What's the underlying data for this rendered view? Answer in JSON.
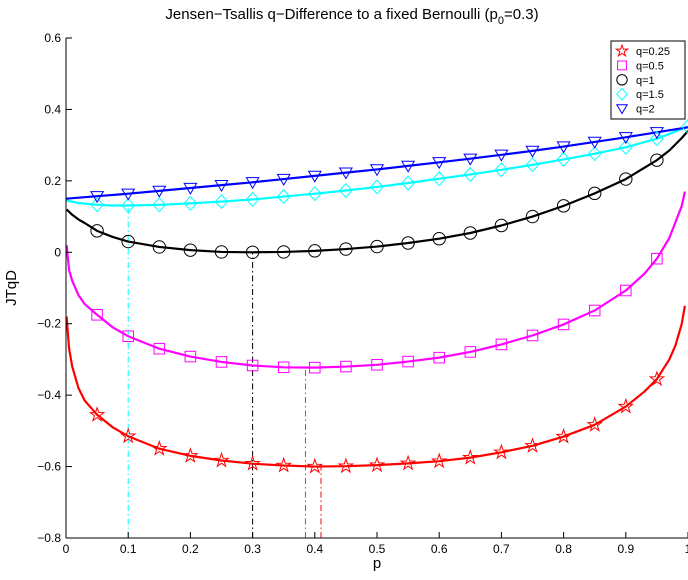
{
  "chart_data": {
    "type": "line",
    "title_main": "Jensen−Tsallis q−Difference to a fixed Bernoulli (p",
    "title_sub": "0",
    "title_end": "=0.3)",
    "xlabel": "p",
    "ylabel": "JTqD",
    "xlim": [
      0,
      1
    ],
    "ylim": [
      -0.8,
      0.6
    ],
    "grid": false,
    "legend_position": "top-right",
    "x_ticks": [
      {
        "value": 0,
        "label": "0"
      },
      {
        "value": 0.1,
        "label": "0.1"
      },
      {
        "value": 0.2,
        "label": "0.2"
      },
      {
        "value": 0.3,
        "label": "0.3"
      },
      {
        "value": 0.4,
        "label": "0.4"
      },
      {
        "value": 0.5,
        "label": "0.5"
      },
      {
        "value": 0.6,
        "label": "0.6"
      },
      {
        "value": 0.7,
        "label": "0.7"
      },
      {
        "value": 0.8,
        "label": "0.8"
      },
      {
        "value": 0.9,
        "label": "0.9"
      },
      {
        "value": 1,
        "label": "1"
      }
    ],
    "y_ticks": [
      {
        "value": -0.8,
        "label": "−0.8"
      },
      {
        "value": -0.6,
        "label": "−0.6"
      },
      {
        "value": -0.4,
        "label": "−0.4"
      },
      {
        "value": -0.2,
        "label": "−0.2"
      },
      {
        "value": 0,
        "label": "0"
      },
      {
        "value": 0.2,
        "label": "0.2"
      },
      {
        "value": 0.4,
        "label": "0.4"
      },
      {
        "value": 0.6,
        "label": "0.6"
      }
    ],
    "series": [
      {
        "name": "q=0.25",
        "color": "#ff0000",
        "marker": "star",
        "min_p": 0.41,
        "curve": [
          [
            0.001,
            -0.18
          ],
          [
            0.005,
            -0.27
          ],
          [
            0.01,
            -0.32
          ],
          [
            0.02,
            -0.38
          ],
          [
            0.03,
            -0.415
          ],
          [
            0.05,
            -0.455
          ],
          [
            0.075,
            -0.49
          ],
          [
            0.1,
            -0.515
          ],
          [
            0.15,
            -0.55
          ],
          [
            0.2,
            -0.57
          ],
          [
            0.25,
            -0.583
          ],
          [
            0.3,
            -0.592
          ],
          [
            0.35,
            -0.597
          ],
          [
            0.4,
            -0.6
          ],
          [
            0.45,
            -0.599
          ],
          [
            0.5,
            -0.596
          ],
          [
            0.55,
            -0.591
          ],
          [
            0.6,
            -0.585
          ],
          [
            0.65,
            -0.575
          ],
          [
            0.7,
            -0.56
          ],
          [
            0.75,
            -0.542
          ],
          [
            0.8,
            -0.516
          ],
          [
            0.85,
            -0.483
          ],
          [
            0.9,
            -0.432
          ],
          [
            0.93,
            -0.39
          ],
          [
            0.95,
            -0.355
          ],
          [
            0.97,
            -0.3
          ],
          [
            0.98,
            -0.26
          ],
          [
            0.99,
            -0.2
          ],
          [
            0.995,
            -0.15
          ]
        ],
        "markers": [
          [
            0.05,
            -0.455
          ],
          [
            0.1,
            -0.515
          ],
          [
            0.15,
            -0.55
          ],
          [
            0.2,
            -0.57
          ],
          [
            0.25,
            -0.583
          ],
          [
            0.3,
            -0.592
          ],
          [
            0.35,
            -0.597
          ],
          [
            0.4,
            -0.6
          ],
          [
            0.45,
            -0.599
          ],
          [
            0.5,
            -0.596
          ],
          [
            0.55,
            -0.591
          ],
          [
            0.6,
            -0.585
          ],
          [
            0.65,
            -0.575
          ],
          [
            0.7,
            -0.56
          ],
          [
            0.75,
            -0.542
          ],
          [
            0.8,
            -0.516
          ],
          [
            0.85,
            -0.483
          ],
          [
            0.9,
            -0.432
          ],
          [
            0.95,
            -0.355
          ]
        ]
      },
      {
        "name": "q=0.5",
        "color": "#ff00ff",
        "marker": "square",
        "min_p": 0.385,
        "curve": [
          [
            0.001,
            0.02
          ],
          [
            0.005,
            -0.05
          ],
          [
            0.01,
            -0.08
          ],
          [
            0.02,
            -0.12
          ],
          [
            0.03,
            -0.145
          ],
          [
            0.05,
            -0.175
          ],
          [
            0.075,
            -0.21
          ],
          [
            0.1,
            -0.235
          ],
          [
            0.15,
            -0.27
          ],
          [
            0.2,
            -0.292
          ],
          [
            0.25,
            -0.307
          ],
          [
            0.3,
            -0.317
          ],
          [
            0.35,
            -0.322
          ],
          [
            0.4,
            -0.323
          ],
          [
            0.45,
            -0.32
          ],
          [
            0.5,
            -0.315
          ],
          [
            0.55,
            -0.306
          ],
          [
            0.6,
            -0.295
          ],
          [
            0.65,
            -0.279
          ],
          [
            0.7,
            -0.258
          ],
          [
            0.75,
            -0.233
          ],
          [
            0.8,
            -0.202
          ],
          [
            0.85,
            -0.163
          ],
          [
            0.9,
            -0.107
          ],
          [
            0.93,
            -0.06
          ],
          [
            0.95,
            -0.018
          ],
          [
            0.97,
            0.04
          ],
          [
            0.99,
            0.13
          ],
          [
            0.995,
            0.17
          ]
        ],
        "markers": [
          [
            0.05,
            -0.175
          ],
          [
            0.1,
            -0.235
          ],
          [
            0.15,
            -0.27
          ],
          [
            0.2,
            -0.292
          ],
          [
            0.25,
            -0.307
          ],
          [
            0.3,
            -0.317
          ],
          [
            0.35,
            -0.322
          ],
          [
            0.4,
            -0.323
          ],
          [
            0.45,
            -0.32
          ],
          [
            0.5,
            -0.315
          ],
          [
            0.55,
            -0.306
          ],
          [
            0.6,
            -0.295
          ],
          [
            0.65,
            -0.279
          ],
          [
            0.7,
            -0.258
          ],
          [
            0.75,
            -0.233
          ],
          [
            0.8,
            -0.202
          ],
          [
            0.85,
            -0.163
          ],
          [
            0.9,
            -0.107
          ],
          [
            0.95,
            -0.018
          ]
        ]
      },
      {
        "name": "q=1",
        "color": "#000000",
        "marker": "circle",
        "min_p": 0.3,
        "curve": [
          [
            0.001,
            0.12
          ],
          [
            0.01,
            0.105
          ],
          [
            0.02,
            0.092
          ],
          [
            0.03,
            0.082
          ],
          [
            0.05,
            0.06
          ],
          [
            0.075,
            0.043
          ],
          [
            0.1,
            0.03
          ],
          [
            0.15,
            0.015
          ],
          [
            0.2,
            0.006
          ],
          [
            0.25,
            0.001
          ],
          [
            0.3,
            0.0
          ],
          [
            0.35,
            0.001
          ],
          [
            0.4,
            0.004
          ],
          [
            0.45,
            0.009
          ],
          [
            0.5,
            0.016
          ],
          [
            0.55,
            0.026
          ],
          [
            0.6,
            0.038
          ],
          [
            0.65,
            0.054
          ],
          [
            0.7,
            0.075
          ],
          [
            0.75,
            0.1
          ],
          [
            0.8,
            0.13
          ],
          [
            0.85,
            0.165
          ],
          [
            0.9,
            0.205
          ],
          [
            0.95,
            0.258
          ],
          [
            0.97,
            0.285
          ],
          [
            0.99,
            0.32
          ],
          [
            1.0,
            0.34
          ]
        ],
        "markers": [
          [
            0.05,
            0.06
          ],
          [
            0.1,
            0.03
          ],
          [
            0.15,
            0.015
          ],
          [
            0.2,
            0.006
          ],
          [
            0.25,
            0.001
          ],
          [
            0.3,
            0.0
          ],
          [
            0.35,
            0.001
          ],
          [
            0.4,
            0.004
          ],
          [
            0.45,
            0.009
          ],
          [
            0.5,
            0.016
          ],
          [
            0.55,
            0.026
          ],
          [
            0.6,
            0.038
          ],
          [
            0.65,
            0.054
          ],
          [
            0.7,
            0.075
          ],
          [
            0.75,
            0.1
          ],
          [
            0.8,
            0.13
          ],
          [
            0.85,
            0.165
          ],
          [
            0.9,
            0.205
          ],
          [
            0.95,
            0.258
          ]
        ]
      },
      {
        "name": "q=1.5",
        "color": "#00ffff",
        "marker": "diamond",
        "min_p": 0.1,
        "curve": [
          [
            0.001,
            0.145
          ],
          [
            0.02,
            0.138
          ],
          [
            0.05,
            0.133
          ],
          [
            0.075,
            0.131
          ],
          [
            0.1,
            0.131
          ],
          [
            0.15,
            0.133
          ],
          [
            0.2,
            0.137
          ],
          [
            0.25,
            0.142
          ],
          [
            0.3,
            0.148
          ],
          [
            0.35,
            0.156
          ],
          [
            0.4,
            0.164
          ],
          [
            0.45,
            0.173
          ],
          [
            0.5,
            0.183
          ],
          [
            0.55,
            0.194
          ],
          [
            0.6,
            0.206
          ],
          [
            0.65,
            0.218
          ],
          [
            0.7,
            0.231
          ],
          [
            0.75,
            0.245
          ],
          [
            0.8,
            0.26
          ],
          [
            0.85,
            0.276
          ],
          [
            0.9,
            0.294
          ],
          [
            0.95,
            0.318
          ],
          [
            1.0,
            0.352
          ]
        ],
        "markers": [
          [
            0.05,
            0.133
          ],
          [
            0.1,
            0.131
          ],
          [
            0.15,
            0.133
          ],
          [
            0.2,
            0.137
          ],
          [
            0.25,
            0.142
          ],
          [
            0.3,
            0.148
          ],
          [
            0.35,
            0.156
          ],
          [
            0.4,
            0.164
          ],
          [
            0.45,
            0.173
          ],
          [
            0.5,
            0.183
          ],
          [
            0.55,
            0.194
          ],
          [
            0.6,
            0.206
          ],
          [
            0.65,
            0.218
          ],
          [
            0.7,
            0.231
          ],
          [
            0.75,
            0.245
          ],
          [
            0.8,
            0.26
          ],
          [
            0.85,
            0.276
          ],
          [
            0.9,
            0.294
          ],
          [
            0.95,
            0.318
          ],
          [
            1.0,
            0.352
          ]
        ]
      },
      {
        "name": "q=2",
        "color": "#0000ff",
        "marker": "triangle-down",
        "min_p": 0.0,
        "curve": [
          [
            0.0,
            0.15
          ],
          [
            0.05,
            0.157
          ],
          [
            0.1,
            0.164
          ],
          [
            0.15,
            0.172
          ],
          [
            0.2,
            0.18
          ],
          [
            0.25,
            0.188
          ],
          [
            0.3,
            0.196
          ],
          [
            0.35,
            0.205
          ],
          [
            0.4,
            0.214
          ],
          [
            0.45,
            0.223
          ],
          [
            0.5,
            0.232
          ],
          [
            0.55,
            0.242
          ],
          [
            0.6,
            0.252
          ],
          [
            0.65,
            0.262
          ],
          [
            0.7,
            0.273
          ],
          [
            0.75,
            0.284
          ],
          [
            0.8,
            0.296
          ],
          [
            0.85,
            0.309
          ],
          [
            0.9,
            0.322
          ],
          [
            0.95,
            0.336
          ],
          [
            1.0,
            0.35
          ]
        ],
        "markers": [
          [
            0.05,
            0.157
          ],
          [
            0.1,
            0.164
          ],
          [
            0.15,
            0.172
          ],
          [
            0.2,
            0.18
          ],
          [
            0.25,
            0.188
          ],
          [
            0.3,
            0.196
          ],
          [
            0.35,
            0.205
          ],
          [
            0.4,
            0.214
          ],
          [
            0.45,
            0.223
          ],
          [
            0.5,
            0.232
          ],
          [
            0.55,
            0.242
          ],
          [
            0.6,
            0.252
          ],
          [
            0.65,
            0.262
          ],
          [
            0.7,
            0.273
          ],
          [
            0.75,
            0.284
          ],
          [
            0.8,
            0.296
          ],
          [
            0.85,
            0.309
          ],
          [
            0.9,
            0.322
          ],
          [
            0.95,
            0.336
          ]
        ]
      }
    ]
  }
}
